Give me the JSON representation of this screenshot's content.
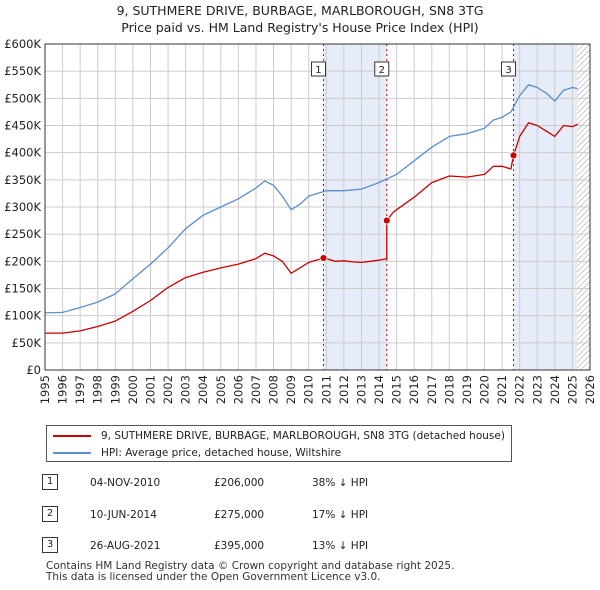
{
  "title": "9, SUTHMERE DRIVE, BURBAGE, MARLBOROUGH, SN8 3TG",
  "subtitle": "Price paid vs. HM Land Registry's House Price Index (HPI)",
  "colors": {
    "red": "#cc0000",
    "blue": "#5b8ed0",
    "shade": "#e6ecf8",
    "grid": "#cccccc"
  },
  "chart_data": {
    "type": "line",
    "title": "9, SUTHMERE DRIVE, BURBAGE, MARLBOROUGH, SN8 3TG — Price paid vs. HM Land Registry's House Price Index (HPI)",
    "xlim": [
      1995,
      2026
    ],
    "ylim": [
      0,
      600000
    ],
    "yticks": [
      0,
      50000,
      100000,
      150000,
      200000,
      250000,
      300000,
      350000,
      400000,
      450000,
      500000,
      550000,
      600000
    ],
    "ytick_labels": [
      "£0",
      "£50K",
      "£100K",
      "£150K",
      "£200K",
      "£250K",
      "£300K",
      "£350K",
      "£400K",
      "£450K",
      "£500K",
      "£550K",
      "£600K"
    ],
    "xticks": [
      1995,
      1996,
      1997,
      1998,
      1999,
      2000,
      2001,
      2002,
      2003,
      2004,
      2005,
      2006,
      2007,
      2008,
      2009,
      2010,
      2011,
      2012,
      2013,
      2014,
      2015,
      2016,
      2017,
      2018,
      2019,
      2020,
      2021,
      2022,
      2023,
      2024,
      2025,
      2026
    ],
    "xtick_labels": [
      "1995",
      "1996",
      "1997",
      "1998",
      "1999",
      "2000",
      "2001",
      "2002",
      "2003",
      "2004",
      "2005",
      "2006",
      "2007",
      "2008",
      "2009",
      "2010",
      "2011",
      "2012",
      "2013",
      "2014",
      "2015",
      "2016",
      "2017",
      "2018",
      "2019",
      "2020",
      "2021",
      "2022",
      "2023",
      "2024",
      "2025",
      "2026"
    ],
    "shaded_ranges": [
      [
        2010.84,
        2014.44
      ],
      [
        2021.65,
        2025.25
      ]
    ],
    "hatch_from": 2025.25,
    "series": [
      {
        "name": "9, SUTHMERE DRIVE, BURBAGE, MARLBOROUGH, SN8 3TG (detached house)",
        "color": "#cc0000",
        "x": [
          1995.0,
          1996.0,
          1997.0,
          1998.0,
          1999.0,
          2000.0,
          2001.0,
          2002.0,
          2003.0,
          2004.0,
          2005.0,
          2006.0,
          2007.0,
          2007.5,
          2008.0,
          2008.5,
          2009.0,
          2009.5,
          2010.0,
          2010.84,
          2011.0,
          2011.5,
          2012.0,
          2012.5,
          2013.0,
          2013.5,
          2014.0,
          2014.44,
          2014.44,
          2014.8,
          2015.0,
          2016.0,
          2017.0,
          2018.0,
          2019.0,
          2020.0,
          2020.5,
          2021.0,
          2021.5,
          2021.65,
          2022.0,
          2022.5,
          2023.0,
          2023.5,
          2024.0,
          2024.5,
          2025.0,
          2025.3
        ],
        "values": [
          68000,
          68000,
          72000,
          80000,
          90000,
          108000,
          128000,
          152000,
          170000,
          180000,
          188000,
          195000,
          205000,
          215000,
          210000,
          200000,
          178000,
          188000,
          198000,
          206000,
          205000,
          200000,
          201000,
          199000,
          198000,
          200000,
          202000,
          205000,
          275000,
          290000,
          295000,
          318000,
          345000,
          357000,
          355000,
          360000,
          375000,
          375000,
          370000,
          395000,
          430000,
          455000,
          450000,
          440000,
          430000,
          450000,
          448000,
          452000
        ]
      },
      {
        "name": "HPI: Average price, detached house, Wiltshire",
        "color": "#5b8ed0",
        "x": [
          1995.0,
          1996.0,
          1997.0,
          1998.0,
          1999.0,
          2000.0,
          2001.0,
          2002.0,
          2003.0,
          2004.0,
          2005.0,
          2006.0,
          2007.0,
          2007.5,
          2008.0,
          2008.5,
          2009.0,
          2009.5,
          2010.0,
          2011.0,
          2012.0,
          2013.0,
          2014.0,
          2015.0,
          2016.0,
          2017.0,
          2018.0,
          2019.0,
          2020.0,
          2020.5,
          2021.0,
          2021.5,
          2022.0,
          2022.5,
          2023.0,
          2023.5,
          2024.0,
          2024.5,
          2025.0,
          2025.3
        ],
        "values": [
          105000,
          106000,
          115000,
          125000,
          140000,
          168000,
          195000,
          225000,
          260000,
          285000,
          300000,
          315000,
          335000,
          348000,
          340000,
          320000,
          295000,
          305000,
          320000,
          330000,
          330000,
          333000,
          345000,
          360000,
          385000,
          410000,
          430000,
          435000,
          445000,
          460000,
          465000,
          475000,
          505000,
          525000,
          520000,
          510000,
          495000,
          515000,
          520000,
          518000
        ]
      }
    ],
    "sales": [
      {
        "label": "1",
        "x": 2010.84,
        "value": 206000
      },
      {
        "label": "2",
        "x": 2014.44,
        "value": 275000
      },
      {
        "label": "3",
        "x": 2021.65,
        "value": 395000
      }
    ]
  },
  "legend": {
    "red_label": "9, SUTHMERE DRIVE, BURBAGE, MARLBOROUGH, SN8 3TG (detached house)",
    "blue_label": "HPI: Average price, detached house, Wiltshire"
  },
  "transactions": [
    {
      "num": "1",
      "date": "04-NOV-2010",
      "price": "£206,000",
      "hpi": "38% ↓ HPI"
    },
    {
      "num": "2",
      "date": "10-JUN-2014",
      "price": "£275,000",
      "hpi": "17% ↓ HPI"
    },
    {
      "num": "3",
      "date": "26-AUG-2021",
      "price": "£395,000",
      "hpi": "13% ↓ HPI"
    }
  ],
  "footer": {
    "line1": "Contains HM Land Registry data © Crown copyright and database right 2025.",
    "line2": "This data is licensed under the Open Government Licence v3.0."
  }
}
